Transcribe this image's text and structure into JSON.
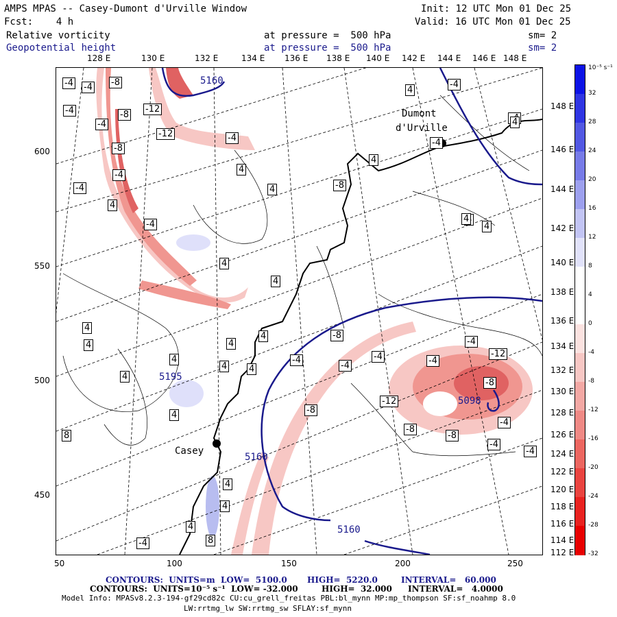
{
  "header": {
    "title": "AMPS MPAS -- Casey-Dumont d'Urville Window",
    "init": "Init: 12 UTC Mon 01 Dec 25",
    "fcst": "Fcst:    4 h",
    "valid": "Valid: 16 UTC Mon 01 Dec 25",
    "field1": "Relative vorticity",
    "field1_level": "at pressure =  500 hPa",
    "field1_sm": "sm= 2",
    "field2": "Geopotential height",
    "field2_level": "at pressure =  500 hPa",
    "field2_sm": "sm= 2"
  },
  "colors": {
    "height_contour": "#1a1a8c",
    "coast": "#000000",
    "neg_vort": "#e0282a",
    "pos_vort": "#2a2ad8"
  },
  "top_lon_labels": [
    "128 E",
    "130 E",
    "132 E",
    "134 E",
    "136 E",
    "138 E",
    "140 E",
    "142 E",
    "144 E",
    "146 E",
    "148 E"
  ],
  "right_lon_labels": [
    "148 E",
    "146 E",
    "144 E",
    "142 E",
    "140 E",
    "138 E",
    "136 E",
    "134 E",
    "132 E",
    "130 E",
    "128 E",
    "126 E",
    "124 E",
    "122 E",
    "120 E",
    "118 E",
    "116 E",
    "114 E",
    "112 E"
  ],
  "left_axis_labels": [
    "600",
    "550",
    "500",
    "450"
  ],
  "bottom_axis_labels": [
    "50",
    "100",
    "150",
    "200",
    "250"
  ],
  "colorbar": {
    "unit": "10⁻⁵ s⁻¹",
    "labels": [
      "32",
      "28",
      "24",
      "20",
      "16",
      "12",
      "8",
      "4",
      "0",
      "-4",
      "-8",
      "-12",
      "-16",
      "-20",
      "-24",
      "-28",
      "-32"
    ]
  },
  "places": [
    {
      "name": "Dumont",
      "name2": "d'Urville"
    },
    {
      "name": "Casey"
    }
  ],
  "height_labels": [
    "5160",
    "5195",
    "5098",
    "5160",
    "5160"
  ],
  "vort_labels": [
    "-4",
    "-4",
    "-8",
    "-4",
    "-4",
    "-8",
    "-12",
    "-12",
    "-4",
    "4",
    "-8",
    "-4",
    "-4",
    "4",
    "4",
    "-8",
    "4",
    "4",
    "-4",
    "4",
    "4",
    "4",
    "4",
    "4",
    "4",
    "4",
    "4",
    "4",
    "-4",
    "-4",
    "-8",
    "-4",
    "-4",
    "-12",
    "-8",
    "-12",
    "-8",
    "-8",
    "-8",
    "-4",
    "-4",
    "-4",
    "-4",
    "4",
    "8",
    "4",
    "4",
    "-4",
    "4",
    "8",
    "4",
    "-4",
    "-4",
    "-4",
    "4",
    "4",
    "4",
    "4"
  ],
  "footer": {
    "line1_a": "CONTOURS:  UNITS=m  LOW=  5100.0",
    "line1_b": "HIGH=  5220.0",
    "line1_c": "INTERVAL=   60.000",
    "line2_a": "CONTOURS:  UNITS=10⁻⁵ s⁻¹  LOW= -32.000",
    "line2_b": "HIGH=  32.000",
    "line2_c": "INTERVAL=   4.0000",
    "line3": "Model Info: MPASv8.2.3-194-gf29cd82c CU:cu_grell_freitas PBL:bl_mynn MP:mp_thompson SF:sf_noahmp 8.0",
    "line4": "LW:rrtmg_lw SW:rrtmg_sw SFLAY:sf_mynn"
  }
}
